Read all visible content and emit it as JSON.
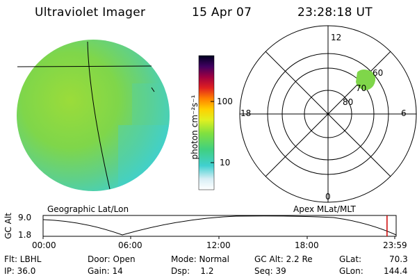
{
  "header": {
    "title": "Ultraviolet Imager",
    "date": "15 Apr 07",
    "time": "23:28:18 UT"
  },
  "colorbar": {
    "label": "photon cm⁻²s⁻¹",
    "ticks": [
      "100",
      "10"
    ]
  },
  "left_panel": {
    "caption": "Geographic Lat/Lon"
  },
  "polar_panel": {
    "caption": "Apex MLat/MLT",
    "mlt_labels": {
      "top": "12",
      "right": "6",
      "bottom": "0",
      "left": "18"
    },
    "lat_labels": [
      "60",
      "70",
      "80"
    ]
  },
  "timeline": {
    "ylabel": "GC Alt",
    "ymax_label": "9.0",
    "ymin_label": "1.8",
    "xticks": [
      "00:00",
      "06:00",
      "12:00",
      "18:00",
      "23:59"
    ],
    "current_time_fraction": 0.978
  },
  "info": {
    "filter": "Flt: LBHL",
    "ip": "IP: 36.0",
    "door": "Door: Open",
    "gain": "Gain: 14",
    "mode": "Mode: Normal",
    "dsp": "Dsp:    1.2",
    "gcalt": "GC Alt: 2.2 Re",
    "seq": "Seq: 39",
    "glat_label": "GLat:",
    "glat_value": "70.3",
    "glon_label": "GLon:",
    "glon_value": "144.4"
  },
  "colors": {
    "background": "#ffffff",
    "disk_main": "#7fd64a",
    "disk_edge": "#4fd0b8",
    "aurora_spot": "#7fd64a",
    "current_time_marker": "#cc0000"
  }
}
